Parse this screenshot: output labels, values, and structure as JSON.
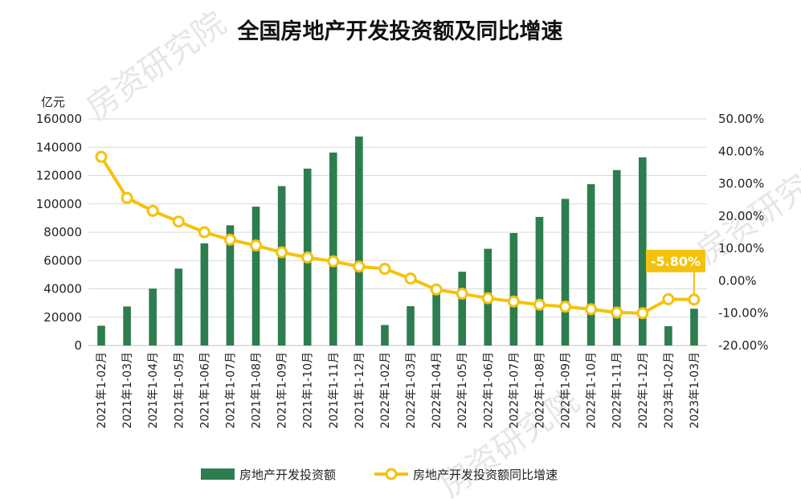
{
  "chart_data": {
    "type": "bar",
    "title": "全国房地产开发投资额及同比增速",
    "unit_label": "亿元",
    "categories": [
      "2021年1-02月",
      "2021年1-03月",
      "2021年1-04月",
      "2021年1-05月",
      "2021年1-06月",
      "2021年1-07月",
      "2021年1-08月",
      "2021年1-09月",
      "2021年1-10月",
      "2021年1-11月",
      "2021年1-12月",
      "2022年1-02月",
      "2022年1-03月",
      "2022年1-04月",
      "2022年1-05月",
      "2022年1-06月",
      "2022年1-07月",
      "2022年1-08月",
      "2022年1-09月",
      "2022年1-10月",
      "2022年1-11月",
      "2022年1-12月",
      "2023年1-02月",
      "2023年1-03月"
    ],
    "series": [
      {
        "name": "房地产开发投资额",
        "type": "bar",
        "axis": "left",
        "color": "#2E7D4F",
        "values": [
          13986,
          27576,
          40240,
          54318,
          72179,
          84895,
          98060,
          112559,
          124934,
          136275,
          147602,
          14499,
          27765,
          39154,
          52134,
          68314,
          79462,
          90809,
          103559,
          113945,
          123863,
          132895,
          13669,
          25974
        ]
      },
      {
        "name": "房地产开发投资额同比增速",
        "type": "line",
        "axis": "right",
        "color": "#F4C20D",
        "values": [
          38.3,
          25.6,
          21.6,
          18.3,
          15.0,
          12.7,
          10.9,
          8.8,
          7.2,
          6.0,
          4.4,
          3.7,
          0.7,
          -2.7,
          -4.0,
          -5.4,
          -6.4,
          -7.4,
          -8.0,
          -8.8,
          -9.8,
          -10.0,
          -5.7,
          -5.8
        ]
      }
    ],
    "left_axis": {
      "ylim": [
        0,
        160000
      ],
      "ticks": [
        "0",
        "20000",
        "40000",
        "60000",
        "80000",
        "100000",
        "120000",
        "140000",
        "160000"
      ]
    },
    "right_axis": {
      "ylim": [
        -20,
        50
      ],
      "ticks": [
        "-20.00%",
        "-10.00%",
        "0.00%",
        "10.00%",
        "20.00%",
        "30.00%",
        "40.00%",
        "50.00%"
      ]
    },
    "callout": {
      "text": "-5.80%",
      "color": "#F4C20D"
    },
    "legend": {
      "placement": "bottom"
    },
    "grid": true
  },
  "watermarks": [
    "房资研究院",
    "房资研究院",
    "房资研究院"
  ]
}
